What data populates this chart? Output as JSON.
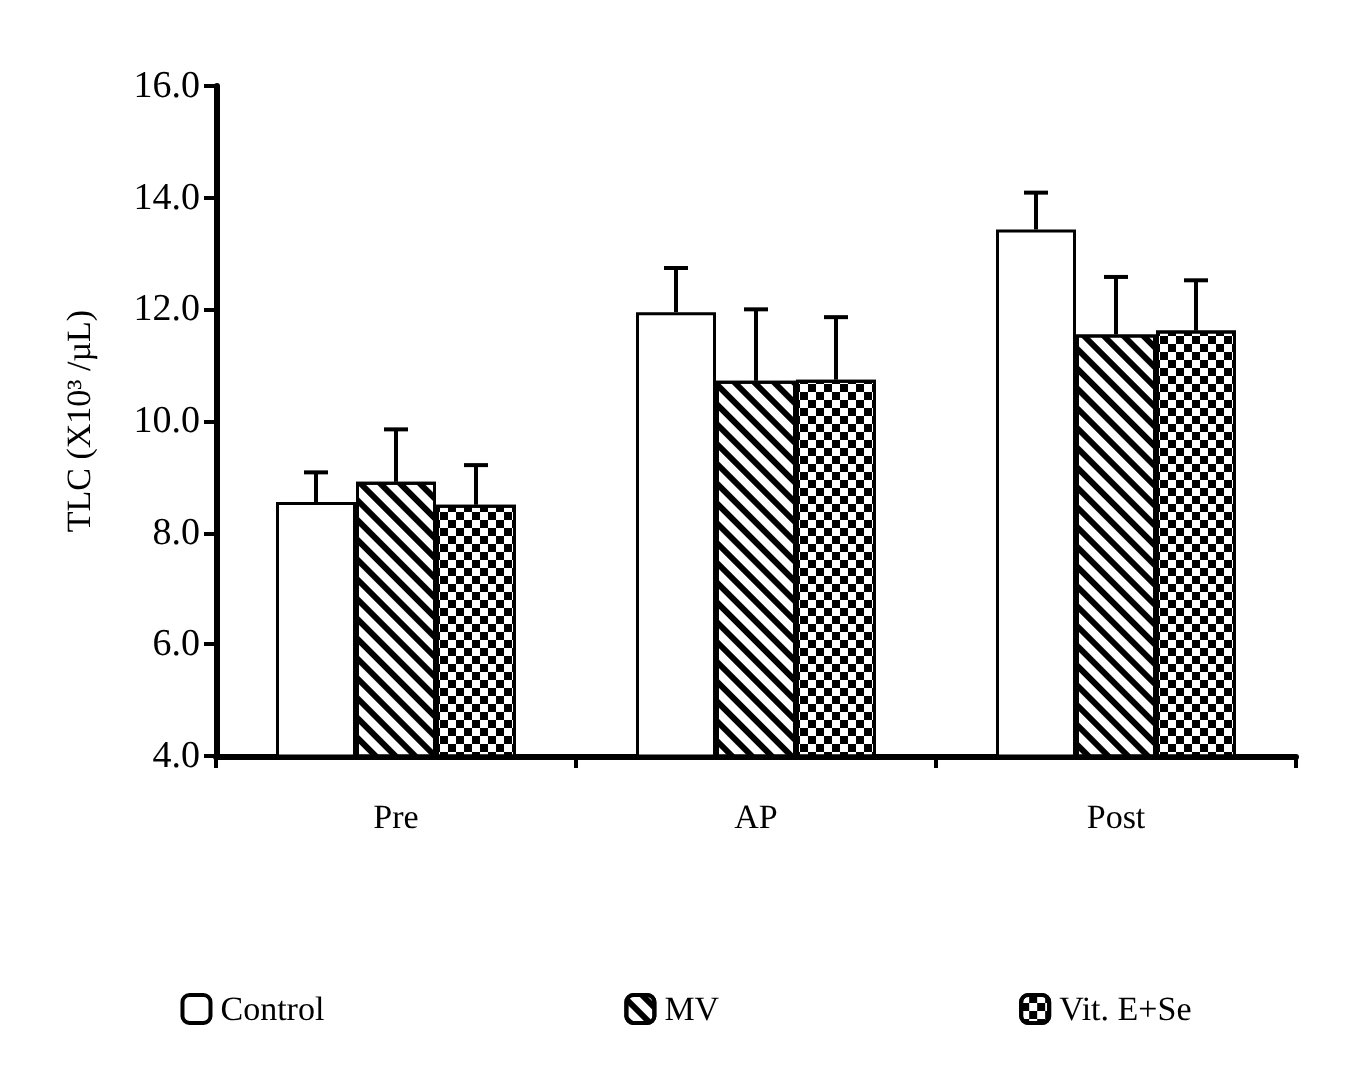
{
  "chart_data": {
    "type": "bar",
    "ylabel": "TLC (X10³ /µL)",
    "categories": [
      "Pre",
      "AP",
      "Post"
    ],
    "series": [
      {
        "name": "Control",
        "color": "#ffffff",
        "values": [
          8.55,
          11.95,
          13.43
        ],
        "errors": [
          0.53,
          0.79,
          0.66
        ]
      },
      {
        "name": "MV",
        "color": "#ffffff",
        "values": [
          8.91,
          10.72,
          11.55
        ],
        "errors": [
          0.94,
          1.28,
          1.03
        ]
      },
      {
        "name": "Vit. E+Se",
        "color": "#ffffff",
        "values": [
          8.5,
          10.74,
          11.62
        ],
        "errors": [
          0.71,
          1.12,
          0.9
        ]
      }
    ],
    "ylim": [
      4,
      16
    ],
    "yticks": [
      {
        "value": 4,
        "label": "4.0"
      },
      {
        "value": 6,
        "label": "6.0"
      },
      {
        "value": 8,
        "label": "8.0"
      },
      {
        "value": 10,
        "label": "10.0"
      },
      {
        "value": 12,
        "label": "12.0"
      },
      {
        "value": 14,
        "label": "14.0"
      },
      {
        "value": 16,
        "label": "16.0"
      }
    ],
    "grid": false,
    "legend": "bottom"
  }
}
